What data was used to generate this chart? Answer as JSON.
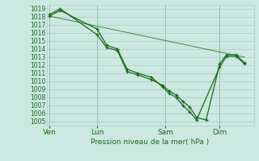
{
  "title": "Pression niveau de la mer( hPa )",
  "ylabel_values": [
    1005,
    1006,
    1007,
    1008,
    1009,
    1010,
    1011,
    1012,
    1013,
    1014,
    1015,
    1016,
    1017,
    1018,
    1019
  ],
  "ylim": [
    1004.5,
    1019.5
  ],
  "background_color": "#cce8e0",
  "grid_color": "#aacccc",
  "line_color": "#1a6b1a",
  "day_labels": [
    "Ven",
    "Lun",
    "Sam",
    "Dim"
  ],
  "day_positions": [
    0.0,
    3.5,
    8.5,
    12.5
  ],
  "xlim": [
    -0.2,
    15.0
  ],
  "series1_x": [
    0.0,
    0.8,
    3.5,
    4.2,
    5.0,
    5.7,
    6.5,
    7.5,
    8.3,
    8.8,
    9.3,
    9.8,
    10.3,
    10.8,
    12.5,
    13.0,
    13.7,
    14.3
  ],
  "series1_y": [
    1018.1,
    1018.8,
    1016.5,
    1014.5,
    1014.0,
    1011.5,
    1011.0,
    1010.5,
    1009.3,
    1008.5,
    1008.0,
    1007.0,
    1006.2,
    1005.2,
    1011.8,
    1013.1,
    1013.1,
    1012.2
  ],
  "series2_x": [
    0.0,
    0.8,
    3.5,
    4.2,
    5.0,
    5.7,
    6.5,
    7.5,
    8.3,
    8.8,
    9.3,
    9.8,
    10.3,
    10.8,
    11.5,
    12.5,
    13.0,
    13.7,
    14.3
  ],
  "series2_y": [
    1018.3,
    1019.0,
    1015.8,
    1014.2,
    1013.8,
    1011.2,
    1010.8,
    1010.2,
    1009.5,
    1008.8,
    1008.3,
    1007.5,
    1006.8,
    1005.5,
    1005.2,
    1012.2,
    1013.3,
    1013.3,
    1012.3
  ],
  "series3_x": [
    0.0,
    14.3
  ],
  "series3_y": [
    1018.1,
    1013.0
  ],
  "vline_positions": [
    0.0,
    3.5,
    8.5,
    12.5
  ]
}
